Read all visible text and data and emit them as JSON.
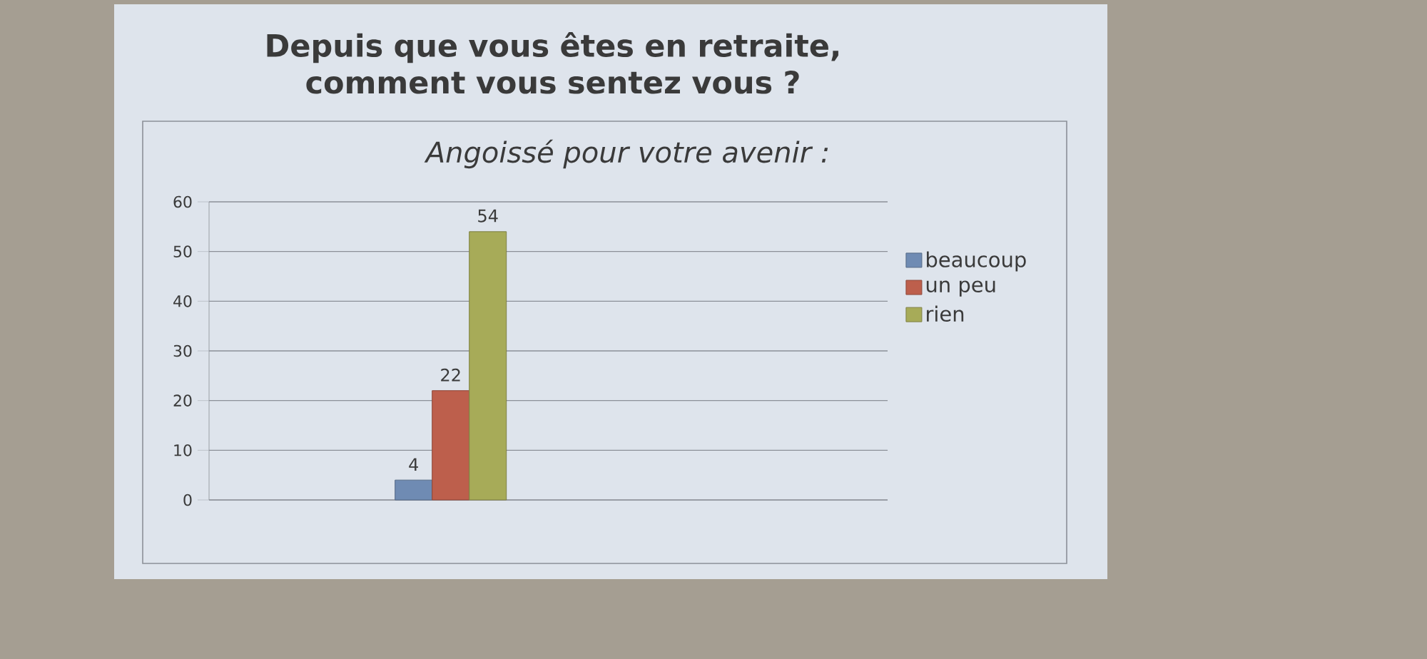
{
  "chart_data": {
    "type": "bar",
    "title": "Depuis que vous êtes en retraite, comment vous sentez vous ?",
    "subtitle": "Angoissé pour votre avenir :",
    "categories": [
      null
    ],
    "series": [
      {
        "name": "beaucoup",
        "color": "#6f8bb3",
        "values": [
          4
        ]
      },
      {
        "name": "un peu",
        "color": "#bd5f4c",
        "values": [
          22
        ]
      },
      {
        "name": "rien",
        "color": "#a7ab58",
        "values": [
          54
        ]
      }
    ],
    "ylim": [
      0,
      60
    ],
    "yticks": [
      0,
      10,
      20,
      30,
      40,
      50,
      60
    ],
    "grid": "y",
    "legend": "right",
    "data_labels": true
  }
}
